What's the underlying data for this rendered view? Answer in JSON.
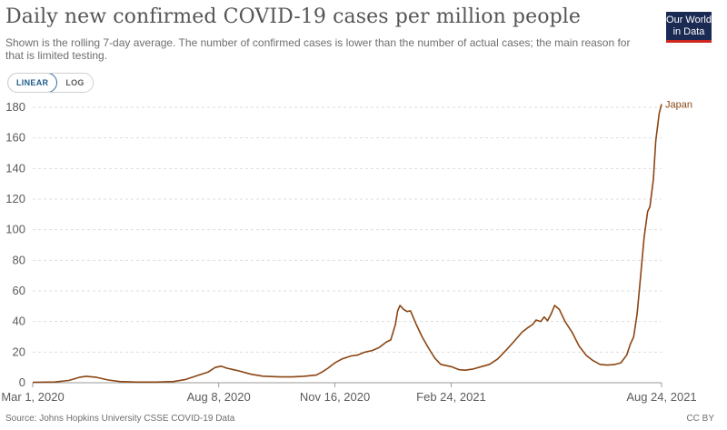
{
  "header": {
    "title": "Daily new confirmed COVID-19 cases per million people",
    "subtitle": "Shown is the rolling 7-day average. The number of confirmed cases is lower than the number of actual cases; the main reason for that is limited testing.",
    "logo_line1": "Our World",
    "logo_line2": "in Data"
  },
  "controls": {
    "linear_label": "LINEAR",
    "log_label": "LOG",
    "selected": "linear"
  },
  "footer": {
    "source": "Source: Johns Hopkins University CSSE COVID-19 Data",
    "license": "CC BY"
  },
  "colors": {
    "series": "#8b4513",
    "grid": "#dddddd",
    "axis": "#999999",
    "text": "#5b5b5b"
  },
  "chart_data": {
    "type": "line",
    "title": "Daily new confirmed COVID-19 cases per million people",
    "xlabel": "",
    "ylabel": "",
    "x_start": "Mar 1, 2020",
    "x_end": "Aug 24, 2021",
    "ylim": [
      0,
      180
    ],
    "y_ticks": [
      0,
      20,
      40,
      60,
      80,
      100,
      120,
      140,
      160,
      180
    ],
    "y_tick_labels": [
      "0",
      "20",
      "40",
      "60",
      "80",
      "100",
      "120",
      "140",
      "160",
      "180"
    ],
    "x_ticks": [
      {
        "label": "Mar 1, 2020",
        "date": "2020-03-01"
      },
      {
        "label": "Aug 8, 2020",
        "date": "2020-08-08"
      },
      {
        "label": "Nov 16, 2020",
        "date": "2020-11-16"
      },
      {
        "label": "Feb 24, 2021",
        "date": "2021-02-24"
      },
      {
        "label": "Aug 24, 2021",
        "date": "2021-08-24"
      }
    ],
    "grid": "horizontal-dashed",
    "legend": "line-end label",
    "series": [
      {
        "name": "Japan",
        "points": [
          [
            "2020-03-01",
            0.3
          ],
          [
            "2020-03-20",
            0.5
          ],
          [
            "2020-04-01",
            1.5
          ],
          [
            "2020-04-10",
            3.5
          ],
          [
            "2020-04-16",
            4.2
          ],
          [
            "2020-04-25",
            3.5
          ],
          [
            "2020-05-05",
            1.8
          ],
          [
            "2020-05-15",
            0.8
          ],
          [
            "2020-05-30",
            0.4
          ],
          [
            "2020-06-15",
            0.4
          ],
          [
            "2020-06-30",
            0.8
          ],
          [
            "2020-07-10",
            2.0
          ],
          [
            "2020-07-20",
            4.5
          ],
          [
            "2020-07-30",
            7.0
          ],
          [
            "2020-08-05",
            10.0
          ],
          [
            "2020-08-10",
            10.8
          ],
          [
            "2020-08-15",
            9.5
          ],
          [
            "2020-08-25",
            7.8
          ],
          [
            "2020-09-05",
            5.5
          ],
          [
            "2020-09-15",
            4.3
          ],
          [
            "2020-09-30",
            3.8
          ],
          [
            "2020-10-10",
            3.8
          ],
          [
            "2020-10-20",
            4.2
          ],
          [
            "2020-10-31",
            5.0
          ],
          [
            "2020-11-05",
            7.0
          ],
          [
            "2020-11-10",
            9.5
          ],
          [
            "2020-11-16",
            13.0
          ],
          [
            "2020-11-22",
            15.5
          ],
          [
            "2020-11-30",
            17.5
          ],
          [
            "2020-12-05",
            18.0
          ],
          [
            "2020-12-12",
            20.0
          ],
          [
            "2020-12-18",
            21.0
          ],
          [
            "2020-12-24",
            23.0
          ],
          [
            "2020-12-30",
            26.5
          ],
          [
            "2021-01-03",
            28.0
          ],
          [
            "2021-01-07",
            38.0
          ],
          [
            "2021-01-09",
            47.0
          ],
          [
            "2021-01-11",
            50.5
          ],
          [
            "2021-01-14",
            48.0
          ],
          [
            "2021-01-17",
            46.5
          ],
          [
            "2021-01-20",
            47.0
          ],
          [
            "2021-01-25",
            38.0
          ],
          [
            "2021-01-30",
            30.0
          ],
          [
            "2021-02-05",
            22.0
          ],
          [
            "2021-02-10",
            16.0
          ],
          [
            "2021-02-15",
            12.0
          ],
          [
            "2021-02-24",
            10.5
          ],
          [
            "2021-03-03",
            8.5
          ],
          [
            "2021-03-08",
            8.2
          ],
          [
            "2021-03-15",
            9.0
          ],
          [
            "2021-03-22",
            10.5
          ],
          [
            "2021-03-29",
            12.0
          ],
          [
            "2021-04-05",
            15.5
          ],
          [
            "2021-04-12",
            21.0
          ],
          [
            "2021-04-19",
            27.0
          ],
          [
            "2021-04-26",
            33.0
          ],
          [
            "2021-05-01",
            36.0
          ],
          [
            "2021-05-05",
            38.0
          ],
          [
            "2021-05-08",
            41.0
          ],
          [
            "2021-05-12",
            40.0
          ],
          [
            "2021-05-15",
            43.0
          ],
          [
            "2021-05-18",
            40.5
          ],
          [
            "2021-05-21",
            45.0
          ],
          [
            "2021-05-24",
            50.5
          ],
          [
            "2021-05-28",
            48.0
          ],
          [
            "2021-06-02",
            40.0
          ],
          [
            "2021-06-08",
            33.0
          ],
          [
            "2021-06-14",
            24.0
          ],
          [
            "2021-06-20",
            18.0
          ],
          [
            "2021-06-26",
            14.5
          ],
          [
            "2021-07-02",
            12.0
          ],
          [
            "2021-07-08",
            11.5
          ],
          [
            "2021-07-14",
            11.8
          ],
          [
            "2021-07-20",
            13.0
          ],
          [
            "2021-07-25",
            18.0
          ],
          [
            "2021-07-28",
            25.0
          ],
          [
            "2021-07-31",
            30.0
          ],
          [
            "2021-08-03",
            45.0
          ],
          [
            "2021-08-06",
            70.0
          ],
          [
            "2021-08-09",
            95.0
          ],
          [
            "2021-08-12",
            112.0
          ],
          [
            "2021-08-14",
            115.0
          ],
          [
            "2021-08-17",
            133.0
          ],
          [
            "2021-08-19",
            158.0
          ],
          [
            "2021-08-22",
            176.0
          ],
          [
            "2021-08-24",
            182.0
          ]
        ]
      }
    ]
  }
}
